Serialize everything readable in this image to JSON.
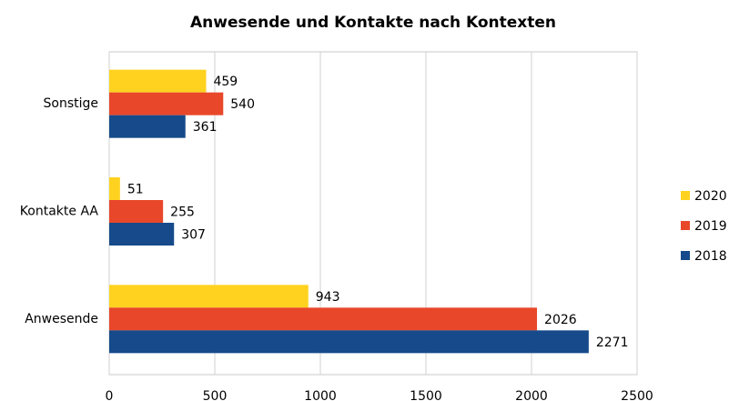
{
  "chart_data": {
    "type": "hbar",
    "title": "Anwesende und Kontakte nach Kontexten",
    "categories": [
      "Sonstige",
      "Kontakte AA",
      "Anwesende"
    ],
    "series": [
      {
        "name": "2020",
        "color": "#ffd21f",
        "values": [
          459,
          51,
          943
        ]
      },
      {
        "name": "2019",
        "color": "#e8472a",
        "values": [
          540,
          255,
          2026
        ]
      },
      {
        "name": "2018",
        "color": "#164a8a",
        "values": [
          361,
          307,
          2271
        ]
      }
    ],
    "xlim": [
      0,
      2500
    ],
    "xticks": [
      0,
      500,
      1000,
      1500,
      2000,
      2500
    ],
    "grid": true,
    "legend": "right"
  }
}
